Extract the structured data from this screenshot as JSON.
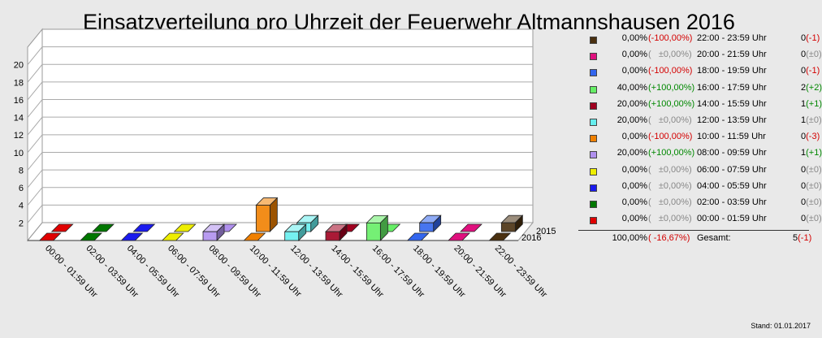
{
  "chart_data": {
    "type": "bar",
    "title": "Einsatzverteilung pro Uhrzeit der Feuerwehr Altmannshausen 2016",
    "categories": [
      "00:00 - 01:59 Uhr",
      "02:00 - 03:59 Uhr",
      "04:00 - 05:59 Uhr",
      "06:00 - 07:59 Uhr",
      "08:00 - 09:59 Uhr",
      "10:00 - 11:59 Uhr",
      "12:00 - 13:59 Uhr",
      "14:00 - 15:59 Uhr",
      "16:00 - 17:59 Uhr",
      "18:00 - 19:59 Uhr",
      "20:00 - 21:59 Uhr",
      "22:00 - 23:59 Uhr"
    ],
    "series": [
      {
        "name": "2015",
        "values": [
          0,
          0,
          0,
          0,
          0,
          3,
          1,
          0,
          0,
          1,
          0,
          1
        ]
      },
      {
        "name": "2016",
        "values": [
          0,
          0,
          0,
          0,
          1,
          0,
          1,
          1,
          2,
          0,
          0,
          0
        ]
      }
    ],
    "colors": [
      "#e00000",
      "#007700",
      "#1a1aee",
      "#eeee00",
      "#b090ee",
      "#f08000",
      "#66eeee",
      "#a00020",
      "#66ee66",
      "#3366ee",
      "#e0107e",
      "#4a3010"
    ],
    "yticks": [
      2,
      4,
      6,
      8,
      10,
      12,
      14,
      16,
      18,
      20
    ],
    "ylim": [
      0,
      22
    ],
    "grid": true
  },
  "legend": {
    "rows": [
      {
        "pct": "0,00%",
        "chg": "(-100,00%)",
        "chg_class": "neg",
        "range": "22:00 - 23:59 Uhr",
        "count": "0",
        "delta": "(-1)",
        "delta_class": "neg",
        "color": "#4a3010"
      },
      {
        "pct": "0,00%",
        "chg": "(   ±0,00%)",
        "chg_class": "zero",
        "range": "20:00 - 21:59 Uhr",
        "count": "0",
        "delta": "(±0)",
        "delta_class": "zero",
        "color": "#e0107e"
      },
      {
        "pct": "0,00%",
        "chg": "(-100,00%)",
        "chg_class": "neg",
        "range": "18:00 - 19:59 Uhr",
        "count": "0",
        "delta": "(-1)",
        "delta_class": "neg",
        "color": "#3366ee"
      },
      {
        "pct": "40,00%",
        "chg": "(+100,00%)",
        "chg_class": "pos",
        "range": "16:00 - 17:59 Uhr",
        "count": "2",
        "delta": "(+2)",
        "delta_class": "pos",
        "color": "#66ee66"
      },
      {
        "pct": "20,00%",
        "chg": "(+100,00%)",
        "chg_class": "pos",
        "range": "14:00 - 15:59 Uhr",
        "count": "1",
        "delta": "(+1)",
        "delta_class": "pos",
        "color": "#a00020"
      },
      {
        "pct": "20,00%",
        "chg": "(   ±0,00%)",
        "chg_class": "zero",
        "range": "12:00 - 13:59 Uhr",
        "count": "1",
        "delta": "(±0)",
        "delta_class": "zero",
        "color": "#66eeee"
      },
      {
        "pct": "0,00%",
        "chg": "(-100,00%)",
        "chg_class": "neg",
        "range": "10:00 - 11:59 Uhr",
        "count": "0",
        "delta": "(-3)",
        "delta_class": "neg",
        "color": "#f08000"
      },
      {
        "pct": "20,00%",
        "chg": "(+100,00%)",
        "chg_class": "pos",
        "range": "08:00 - 09:59 Uhr",
        "count": "1",
        "delta": "(+1)",
        "delta_class": "pos",
        "color": "#b090ee"
      },
      {
        "pct": "0,00%",
        "chg": "(   ±0,00%)",
        "chg_class": "zero",
        "range": "06:00 - 07:59 Uhr",
        "count": "0",
        "delta": "(±0)",
        "delta_class": "zero",
        "color": "#eeee00"
      },
      {
        "pct": "0,00%",
        "chg": "(   ±0,00%)",
        "chg_class": "zero",
        "range": "04:00 - 05:59 Uhr",
        "count": "0",
        "delta": "(±0)",
        "delta_class": "zero",
        "color": "#1a1aee"
      },
      {
        "pct": "0,00%",
        "chg": "(   ±0,00%)",
        "chg_class": "zero",
        "range": "02:00 - 03:59 Uhr",
        "count": "0",
        "delta": "(±0)",
        "delta_class": "zero",
        "color": "#007700"
      },
      {
        "pct": "0,00%",
        "chg": "(   ±0,00%)",
        "chg_class": "zero",
        "range": "00:00 - 01:59 Uhr",
        "count": "0",
        "delta": "(±0)",
        "delta_class": "zero",
        "color": "#e00000"
      }
    ],
    "total": {
      "pct": "100,00%",
      "chg": "( -16,67%)",
      "chg_class": "neg",
      "label": "Gesamt:",
      "count": "5",
      "delta": "(-1)",
      "delta_class": "neg"
    }
  },
  "stand": "Stand: 01.01.2017"
}
